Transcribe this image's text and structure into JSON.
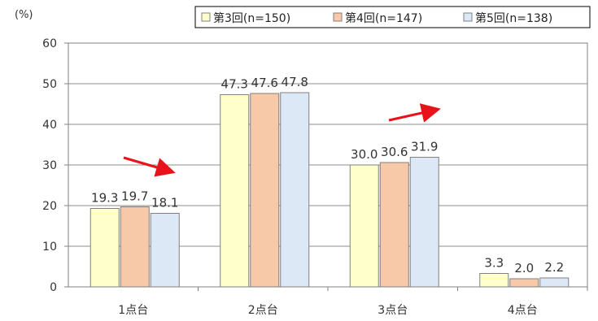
{
  "chart_data": {
    "type": "bar",
    "unit_label": "(%)",
    "categories": [
      "1点台",
      "2点台",
      "3点台",
      "4点台"
    ],
    "series": [
      {
        "name": "第3回(n=150)",
        "values": [
          19.3,
          47.3,
          30.0,
          3.3
        ],
        "labels": [
          "19.3",
          "47.3",
          "30.0",
          "3.3"
        ],
        "color": "#FFFFCC"
      },
      {
        "name": "第4回(n=147)",
        "values": [
          19.7,
          47.6,
          30.6,
          2.0
        ],
        "labels": [
          "19.7",
          "47.6",
          "30.6",
          "2.0"
        ],
        "color": "#F8C9A8"
      },
      {
        "name": "第5回(n=138)",
        "values": [
          18.1,
          47.8,
          31.9,
          2.2
        ],
        "labels": [
          "18.1",
          "47.8",
          "31.9",
          "2.2"
        ],
        "color": "#DCE8F5"
      }
    ],
    "ylim": [
      0,
      60
    ],
    "yticks": [
      0,
      10,
      20,
      30,
      40,
      50,
      60
    ],
    "grid": true,
    "legend_position": "top-right",
    "annotations": [
      {
        "type": "arrow",
        "direction": "down-right",
        "near_category": "1点台",
        "color": "#E8121B"
      },
      {
        "type": "arrow",
        "direction": "up-right",
        "near_category": "3点台",
        "color": "#E8121B"
      }
    ]
  }
}
